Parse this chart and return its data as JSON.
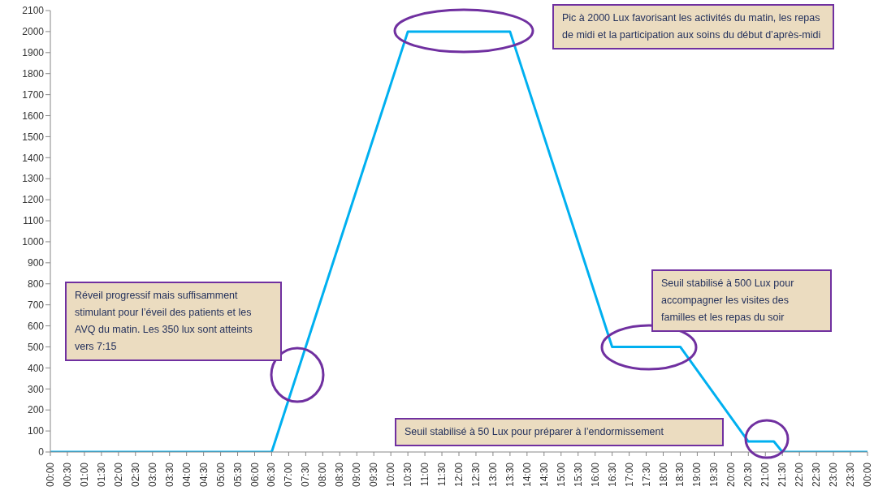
{
  "chart_data": {
    "type": "line",
    "x": [
      0,
      6.5,
      10.5,
      13.5,
      16.5,
      18.5,
      20.5,
      21.25,
      21.5,
      24
    ],
    "series": [
      {
        "color": "#00b0f0",
        "values": [
          0,
          0,
          2000,
          2000,
          500,
          500,
          50,
          50,
          0,
          0
        ]
      }
    ],
    "xlim": [
      0,
      24
    ],
    "xticks": [
      {
        "value": 0,
        "label": "00:00"
      },
      {
        "value": 0.5,
        "label": "00:30"
      },
      {
        "value": 1,
        "label": "01:00"
      },
      {
        "value": 1.5,
        "label": "01:30"
      },
      {
        "value": 2,
        "label": "02:00"
      },
      {
        "value": 2.5,
        "label": "02:30"
      },
      {
        "value": 3,
        "label": "03:00"
      },
      {
        "value": 3.5,
        "label": "03:30"
      },
      {
        "value": 4,
        "label": "04:00"
      },
      {
        "value": 4.5,
        "label": "04:30"
      },
      {
        "value": 5,
        "label": "05:00"
      },
      {
        "value": 5.5,
        "label": "05:30"
      },
      {
        "value": 6,
        "label": "06:00"
      },
      {
        "value": 6.5,
        "label": "06:30"
      },
      {
        "value": 7,
        "label": "07:00"
      },
      {
        "value": 7.5,
        "label": "07:30"
      },
      {
        "value": 8,
        "label": "08:00"
      },
      {
        "value": 8.5,
        "label": "08:30"
      },
      {
        "value": 9,
        "label": "09:00"
      },
      {
        "value": 9.5,
        "label": "09:30"
      },
      {
        "value": 10,
        "label": "10:00"
      },
      {
        "value": 10.5,
        "label": "10:30"
      },
      {
        "value": 11,
        "label": "11:00"
      },
      {
        "value": 11.5,
        "label": "11:30"
      },
      {
        "value": 12,
        "label": "12:00"
      },
      {
        "value": 12.5,
        "label": "12:30"
      },
      {
        "value": 13,
        "label": "13:00"
      },
      {
        "value": 13.5,
        "label": "13:30"
      },
      {
        "value": 14,
        "label": "14:00"
      },
      {
        "value": 14.5,
        "label": "14:30"
      },
      {
        "value": 15,
        "label": "15:00"
      },
      {
        "value": 15.5,
        "label": "15:30"
      },
      {
        "value": 16,
        "label": "16:00"
      },
      {
        "value": 16.5,
        "label": "16:30"
      },
      {
        "value": 17,
        "label": "17:00"
      },
      {
        "value": 17.5,
        "label": "17:30"
      },
      {
        "value": 18,
        "label": "18:00"
      },
      {
        "value": 18.5,
        "label": "18:30"
      },
      {
        "value": 19,
        "label": "19:00"
      },
      {
        "value": 19.5,
        "label": "19:30"
      },
      {
        "value": 20,
        "label": "20:00"
      },
      {
        "value": 20.5,
        "label": "20:30"
      },
      {
        "value": 21,
        "label": "21:00"
      },
      {
        "value": 21.5,
        "label": "21:30"
      },
      {
        "value": 22,
        "label": "22:00"
      },
      {
        "value": 22.5,
        "label": "22:30"
      },
      {
        "value": 23,
        "label": "23:00"
      },
      {
        "value": 23.5,
        "label": "23:30"
      },
      {
        "value": 24,
        "label": "00:00"
      }
    ],
    "ylim": [
      0,
      2100
    ],
    "yticks": [
      0,
      100,
      200,
      300,
      400,
      500,
      600,
      700,
      800,
      900,
      1000,
      1100,
      1200,
      1300,
      1400,
      1500,
      1600,
      1700,
      1800,
      1900,
      2000,
      2100
    ],
    "grid": false,
    "legend": false,
    "marker": "none",
    "line_style": "solid",
    "annotations": [
      "Réveil progressif mais suffisamment stimulant pour l’éveil des patients et les AVQ du matin. Les 350 lux sont atteints vers 7:15",
      "Pic à 2000 Lux favorisant les activités du matin, les repas de midi et la participation aux soins du début d’après-midi",
      "Seuil stabilisé à 500 Lux pour accompagner les visites des familles et les repas du soir",
      "Seuil stabilisé à 50 Lux pour préparer à l’endormissement"
    ]
  }
}
